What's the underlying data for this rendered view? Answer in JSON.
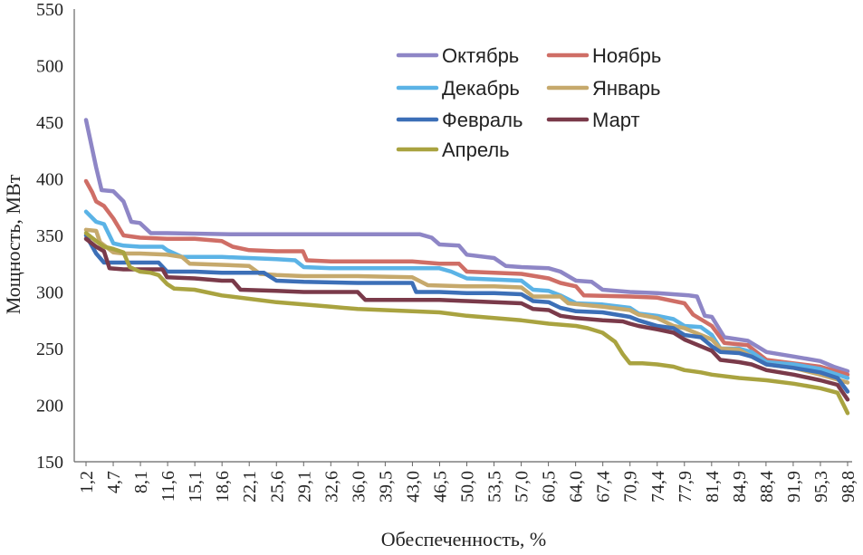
{
  "chart_data": {
    "type": "line",
    "xlabel": "Обеспеченность, %",
    "ylabel": "Мощность, МВт",
    "xlim": [
      1.2,
      98.8
    ],
    "ylim": [
      150,
      550
    ],
    "y_ticks": [
      150,
      200,
      250,
      300,
      350,
      400,
      450,
      500,
      550
    ],
    "x_tick_labels": [
      "1,2",
      "4,7",
      "8,1",
      "11,6",
      "15,1",
      "18,6",
      "22,1",
      "25,6",
      "29,1",
      "32,6",
      "36,0",
      "39,5",
      "43,0",
      "46,5",
      "50,0",
      "53,5",
      "57,0",
      "60,5",
      "64,0",
      "67,4",
      "70,9",
      "74,4",
      "77,9",
      "81,4",
      "84,9",
      "88,4",
      "91,9",
      "95,3",
      "98,8"
    ],
    "grid": false,
    "legend_position": "top-right",
    "series": [
      {
        "name": "Октябрь",
        "color": "#8e86c6",
        "points": [
          [
            1.2,
            452
          ],
          [
            2.5,
            410
          ],
          [
            3.2,
            390
          ],
          [
            4.7,
            389
          ],
          [
            6.0,
            380
          ],
          [
            7.0,
            362
          ],
          [
            8.1,
            361
          ],
          [
            9.5,
            352
          ],
          [
            11.6,
            352
          ],
          [
            20.0,
            351
          ],
          [
            30.0,
            351
          ],
          [
            40.0,
            351
          ],
          [
            44.0,
            351
          ],
          [
            45.5,
            348
          ],
          [
            46.5,
            342
          ],
          [
            49.0,
            341
          ],
          [
            50.0,
            333
          ],
          [
            53.5,
            330
          ],
          [
            55.0,
            323
          ],
          [
            57.0,
            322
          ],
          [
            60.5,
            321
          ],
          [
            62.0,
            318
          ],
          [
            64.0,
            310
          ],
          [
            66.0,
            309
          ],
          [
            67.4,
            302
          ],
          [
            70.9,
            300
          ],
          [
            74.4,
            299
          ],
          [
            78.5,
            297
          ],
          [
            79.5,
            296
          ],
          [
            80.5,
            279
          ],
          [
            81.4,
            278
          ],
          [
            83.0,
            260
          ],
          [
            86.0,
            257
          ],
          [
            88.4,
            247
          ],
          [
            91.9,
            243
          ],
          [
            95.3,
            239
          ],
          [
            97.0,
            234
          ],
          [
            98.8,
            230
          ]
        ]
      },
      {
        "name": "Ноябрь",
        "color": "#cf6e66",
        "points": [
          [
            1.2,
            398
          ],
          [
            2.0,
            388
          ],
          [
            2.5,
            380
          ],
          [
            3.5,
            376
          ],
          [
            4.7,
            365
          ],
          [
            6.0,
            350
          ],
          [
            8.1,
            348
          ],
          [
            11.6,
            347
          ],
          [
            15.1,
            347
          ],
          [
            18.6,
            345
          ],
          [
            20.0,
            340
          ],
          [
            22.1,
            337
          ],
          [
            25.6,
            336
          ],
          [
            29.0,
            336
          ],
          [
            29.5,
            328
          ],
          [
            32.6,
            327
          ],
          [
            43.0,
            327
          ],
          [
            46.5,
            325
          ],
          [
            49.0,
            325
          ],
          [
            50.0,
            318
          ],
          [
            53.5,
            317
          ],
          [
            57.0,
            316
          ],
          [
            60.5,
            312
          ],
          [
            62.0,
            308
          ],
          [
            64.0,
            305
          ],
          [
            65.0,
            297
          ],
          [
            70.9,
            296
          ],
          [
            74.4,
            295
          ],
          [
            77.9,
            290
          ],
          [
            79.0,
            280
          ],
          [
            81.4,
            270
          ],
          [
            83.0,
            255
          ],
          [
            86.0,
            253
          ],
          [
            88.4,
            240
          ],
          [
            91.9,
            237
          ],
          [
            95.3,
            234
          ],
          [
            98.8,
            227
          ]
        ]
      },
      {
        "name": "Декабрь",
        "color": "#5bb3e6",
        "points": [
          [
            1.2,
            371
          ],
          [
            2.5,
            362
          ],
          [
            3.5,
            360
          ],
          [
            4.7,
            343
          ],
          [
            6.0,
            341
          ],
          [
            8.1,
            340
          ],
          [
            11.0,
            340
          ],
          [
            11.6,
            337
          ],
          [
            13.5,
            331
          ],
          [
            18.6,
            331
          ],
          [
            22.1,
            330
          ],
          [
            25.6,
            329
          ],
          [
            28.0,
            328
          ],
          [
            29.1,
            322
          ],
          [
            32.6,
            321
          ],
          [
            46.5,
            321
          ],
          [
            48.0,
            318
          ],
          [
            50.0,
            312
          ],
          [
            53.5,
            311
          ],
          [
            57.0,
            310
          ],
          [
            58.5,
            302
          ],
          [
            60.5,
            301
          ],
          [
            62.0,
            297
          ],
          [
            64.0,
            290
          ],
          [
            67.4,
            289
          ],
          [
            70.9,
            286
          ],
          [
            72.0,
            281
          ],
          [
            74.4,
            279
          ],
          [
            76.5,
            276
          ],
          [
            77.9,
            270
          ],
          [
            80.0,
            269
          ],
          [
            81.4,
            262
          ],
          [
            82.5,
            250
          ],
          [
            84.9,
            250
          ],
          [
            86.5,
            247
          ],
          [
            88.4,
            238
          ],
          [
            91.9,
            236
          ],
          [
            95.3,
            232
          ],
          [
            98.8,
            224
          ]
        ]
      },
      {
        "name": "Январь",
        "color": "#c6a96c",
        "points": [
          [
            1.2,
            355
          ],
          [
            2.5,
            354
          ],
          [
            3.0,
            344
          ],
          [
            4.7,
            335
          ],
          [
            6.0,
            334
          ],
          [
            8.1,
            334
          ],
          [
            11.6,
            333
          ],
          [
            13.5,
            331
          ],
          [
            14.5,
            325
          ],
          [
            18.6,
            324
          ],
          [
            22.1,
            323
          ],
          [
            23.5,
            316
          ],
          [
            25.6,
            315
          ],
          [
            29.1,
            314
          ],
          [
            36.0,
            314
          ],
          [
            43.0,
            313
          ],
          [
            45.0,
            306
          ],
          [
            50.0,
            305
          ],
          [
            53.5,
            305
          ],
          [
            57.0,
            304
          ],
          [
            58.5,
            296
          ],
          [
            62.0,
            296
          ],
          [
            63.0,
            290
          ],
          [
            67.4,
            287
          ],
          [
            70.9,
            284
          ],
          [
            72.0,
            280
          ],
          [
            74.4,
            277
          ],
          [
            76.5,
            270
          ],
          [
            77.9,
            268
          ],
          [
            81.4,
            258
          ],
          [
            82.5,
            250
          ],
          [
            84.9,
            249
          ],
          [
            86.5,
            243
          ],
          [
            88.4,
            236
          ],
          [
            91.9,
            233
          ],
          [
            95.3,
            227
          ],
          [
            98.8,
            220
          ]
        ]
      },
      {
        "name": "Февраль",
        "color": "#3c6fb7",
        "points": [
          [
            1.2,
            350
          ],
          [
            2.5,
            334
          ],
          [
            3.5,
            326
          ],
          [
            4.7,
            326
          ],
          [
            8.1,
            326
          ],
          [
            10.5,
            326
          ],
          [
            11.6,
            318
          ],
          [
            15.1,
            318
          ],
          [
            18.6,
            317
          ],
          [
            22.1,
            317
          ],
          [
            24.0,
            317
          ],
          [
            25.6,
            310
          ],
          [
            29.1,
            309
          ],
          [
            36.0,
            308
          ],
          [
            43.0,
            308
          ],
          [
            43.5,
            300
          ],
          [
            46.5,
            300
          ],
          [
            50.0,
            299
          ],
          [
            53.5,
            299
          ],
          [
            57.0,
            298
          ],
          [
            58.5,
            292
          ],
          [
            60.5,
            291
          ],
          [
            62.0,
            286
          ],
          [
            64.0,
            283
          ],
          [
            67.4,
            282
          ],
          [
            70.9,
            278
          ],
          [
            72.0,
            275
          ],
          [
            74.4,
            270
          ],
          [
            76.5,
            268
          ],
          [
            77.9,
            262
          ],
          [
            80.0,
            260
          ],
          [
            81.4,
            252
          ],
          [
            82.5,
            247
          ],
          [
            84.9,
            246
          ],
          [
            86.5,
            243
          ],
          [
            88.4,
            236
          ],
          [
            91.9,
            233
          ],
          [
            95.3,
            229
          ],
          [
            97.5,
            224
          ],
          [
            98.8,
            212
          ]
        ]
      },
      {
        "name": "Март",
        "color": "#7a3a4a",
        "points": [
          [
            1.2,
            347
          ],
          [
            2.5,
            340
          ],
          [
            3.5,
            336
          ],
          [
            4.2,
            321
          ],
          [
            6.0,
            320
          ],
          [
            8.1,
            320
          ],
          [
            11.0,
            320
          ],
          [
            11.6,
            313
          ],
          [
            15.1,
            312
          ],
          [
            18.6,
            310
          ],
          [
            20.0,
            310
          ],
          [
            21.0,
            302
          ],
          [
            25.6,
            301
          ],
          [
            29.1,
            300
          ],
          [
            36.0,
            300
          ],
          [
            37.0,
            293
          ],
          [
            43.0,
            293
          ],
          [
            46.5,
            293
          ],
          [
            50.0,
            292
          ],
          [
            53.5,
            291
          ],
          [
            57.0,
            290
          ],
          [
            58.5,
            285
          ],
          [
            60.5,
            284
          ],
          [
            62.0,
            279
          ],
          [
            64.0,
            277
          ],
          [
            67.4,
            275
          ],
          [
            70.0,
            274
          ],
          [
            70.9,
            272
          ],
          [
            72.0,
            270
          ],
          [
            74.4,
            267
          ],
          [
            76.5,
            264
          ],
          [
            77.9,
            258
          ],
          [
            81.4,
            248
          ],
          [
            82.5,
            240
          ],
          [
            84.9,
            238
          ],
          [
            86.5,
            236
          ],
          [
            88.4,
            231
          ],
          [
            91.9,
            227
          ],
          [
            95.3,
            222
          ],
          [
            97.5,
            218
          ],
          [
            98.8,
            205
          ]
        ]
      },
      {
        "name": "Апрель",
        "color": "#a9a340",
        "points": [
          [
            1.2,
            352
          ],
          [
            2.5,
            345
          ],
          [
            3.5,
            340
          ],
          [
            4.7,
            338
          ],
          [
            6.0,
            335
          ],
          [
            6.8,
            322
          ],
          [
            8.1,
            318
          ],
          [
            9.5,
            317
          ],
          [
            10.5,
            315
          ],
          [
            11.6,
            307
          ],
          [
            12.5,
            303
          ],
          [
            15.1,
            302
          ],
          [
            16.5,
            300
          ],
          [
            18.6,
            297
          ],
          [
            22.1,
            294
          ],
          [
            25.6,
            291
          ],
          [
            29.1,
            289
          ],
          [
            32.6,
            287
          ],
          [
            36.0,
            285
          ],
          [
            39.5,
            284
          ],
          [
            43.0,
            283
          ],
          [
            46.5,
            282
          ],
          [
            50.0,
            279
          ],
          [
            53.5,
            277
          ],
          [
            57.0,
            275
          ],
          [
            60.5,
            272
          ],
          [
            64.0,
            270
          ],
          [
            65.5,
            268
          ],
          [
            67.4,
            264
          ],
          [
            69.0,
            256
          ],
          [
            70.0,
            245
          ],
          [
            70.9,
            237
          ],
          [
            72.5,
            237
          ],
          [
            74.4,
            236
          ],
          [
            76.5,
            234
          ],
          [
            77.9,
            231
          ],
          [
            80.0,
            229
          ],
          [
            81.4,
            227
          ],
          [
            84.9,
            224
          ],
          [
            88.4,
            222
          ],
          [
            91.9,
            219
          ],
          [
            95.3,
            215
          ],
          [
            97.5,
            211
          ],
          [
            98.3,
            200
          ],
          [
            98.8,
            193
          ]
        ]
      }
    ]
  }
}
